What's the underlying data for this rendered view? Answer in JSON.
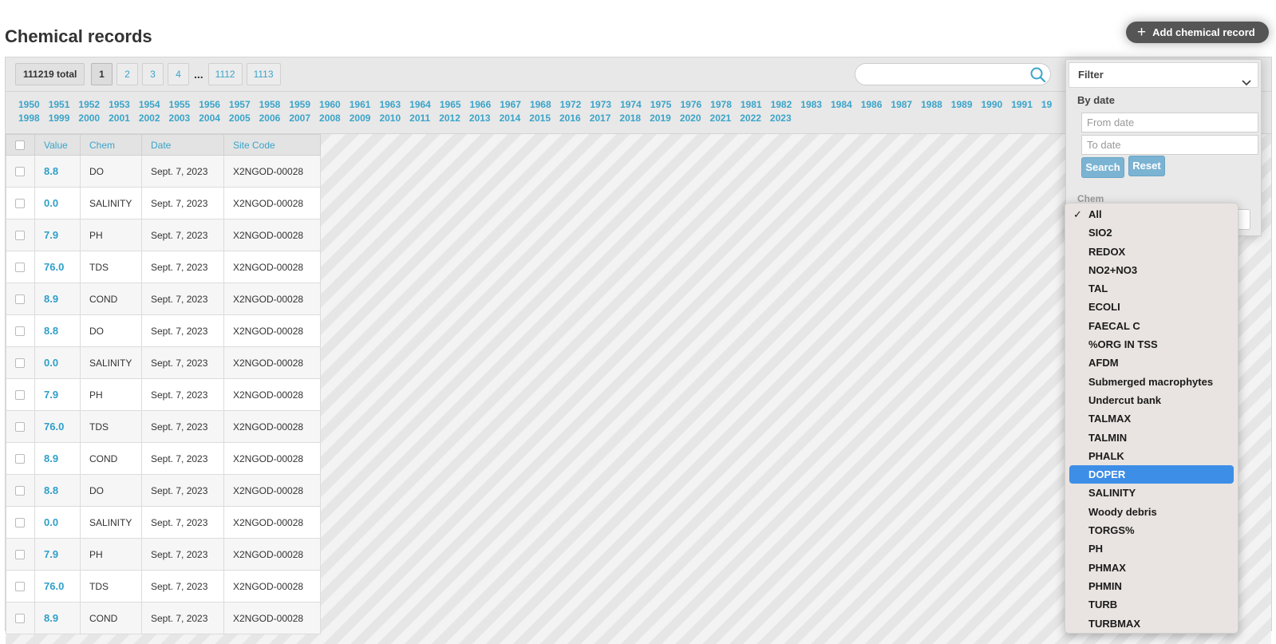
{
  "page": {
    "title": "Chemical records",
    "add_button": "Add chemical record"
  },
  "pagination": {
    "total": "111219 total",
    "pages": [
      "1",
      "2",
      "3",
      "4",
      "...",
      "1112",
      "1113"
    ],
    "current": "1"
  },
  "search": {
    "placeholder": ""
  },
  "years": {
    "row1": [
      "1950",
      "1951",
      "1952",
      "1953",
      "1954",
      "1955",
      "1956",
      "1957",
      "1958",
      "1959",
      "1960",
      "1961",
      "1963",
      "1964",
      "1965",
      "1966",
      "1967",
      "1968",
      "1972",
      "1973",
      "1974",
      "1975",
      "1976",
      "1978",
      "1981",
      "1982",
      "1983",
      "1984",
      "1986",
      "1987",
      "1988",
      "1989",
      "1990",
      "1991",
      "19"
    ],
    "row2": [
      "1998",
      "1999",
      "2000",
      "2001",
      "2002",
      "2003",
      "2004",
      "2005",
      "2006",
      "2007",
      "2008",
      "2009",
      "2010",
      "2011",
      "2012",
      "2013",
      "2014",
      "2015",
      "2016",
      "2017",
      "2018",
      "2019",
      "2020",
      "2021",
      "2022",
      "2023"
    ]
  },
  "table": {
    "headers": [
      "Value",
      "Chem",
      "Date",
      "Site Code"
    ],
    "rows": [
      {
        "value": "8.8",
        "chem": "DO",
        "date": "Sept. 7, 2023",
        "site": "X2NGOD-00028"
      },
      {
        "value": "0.0",
        "chem": "SALINITY",
        "date": "Sept. 7, 2023",
        "site": "X2NGOD-00028"
      },
      {
        "value": "7.9",
        "chem": "PH",
        "date": "Sept. 7, 2023",
        "site": "X2NGOD-00028"
      },
      {
        "value": "76.0",
        "chem": "TDS",
        "date": "Sept. 7, 2023",
        "site": "X2NGOD-00028"
      },
      {
        "value": "8.9",
        "chem": "COND",
        "date": "Sept. 7, 2023",
        "site": "X2NGOD-00028"
      },
      {
        "value": "8.8",
        "chem": "DO",
        "date": "Sept. 7, 2023",
        "site": "X2NGOD-00028"
      },
      {
        "value": "0.0",
        "chem": "SALINITY",
        "date": "Sept. 7, 2023",
        "site": "X2NGOD-00028"
      },
      {
        "value": "7.9",
        "chem": "PH",
        "date": "Sept. 7, 2023",
        "site": "X2NGOD-00028"
      },
      {
        "value": "76.0",
        "chem": "TDS",
        "date": "Sept. 7, 2023",
        "site": "X2NGOD-00028"
      },
      {
        "value": "8.9",
        "chem": "COND",
        "date": "Sept. 7, 2023",
        "site": "X2NGOD-00028"
      },
      {
        "value": "8.8",
        "chem": "DO",
        "date": "Sept. 7, 2023",
        "site": "X2NGOD-00028"
      },
      {
        "value": "0.0",
        "chem": "SALINITY",
        "date": "Sept. 7, 2023",
        "site": "X2NGOD-00028"
      },
      {
        "value": "7.9",
        "chem": "PH",
        "date": "Sept. 7, 2023",
        "site": "X2NGOD-00028"
      },
      {
        "value": "76.0",
        "chem": "TDS",
        "date": "Sept. 7, 2023",
        "site": "X2NGOD-00028"
      },
      {
        "value": "8.9",
        "chem": "COND",
        "date": "Sept. 7, 2023",
        "site": "X2NGOD-00028"
      }
    ]
  },
  "filter": {
    "title": "Filter",
    "by_date": "By date",
    "from_placeholder": "From date",
    "to_placeholder": "To date",
    "search_button": "Search",
    "reset_button": "Reset",
    "chem_label": "Chem",
    "chem_selected": "All",
    "chem_options": [
      "All",
      "SIO2",
      "REDOX",
      "NO2+NO3",
      "TAL",
      "ECOLI",
      "FAECAL C",
      "%ORG IN TSS",
      "AFDM",
      "Submerged macrophytes",
      "Undercut bank",
      "TALMAX",
      "TALMIN",
      "PHALK",
      "DOPER",
      "SALINITY",
      "Woody debris",
      "TORGS%",
      "PH",
      "PHMAX",
      "PHMIN",
      "TURB",
      "TURBMAX"
    ],
    "highlighted": "DOPER"
  },
  "colors": {
    "accent": "#3ba4c8",
    "highlight": "#3d8ee6",
    "dark_button": "#555555"
  }
}
